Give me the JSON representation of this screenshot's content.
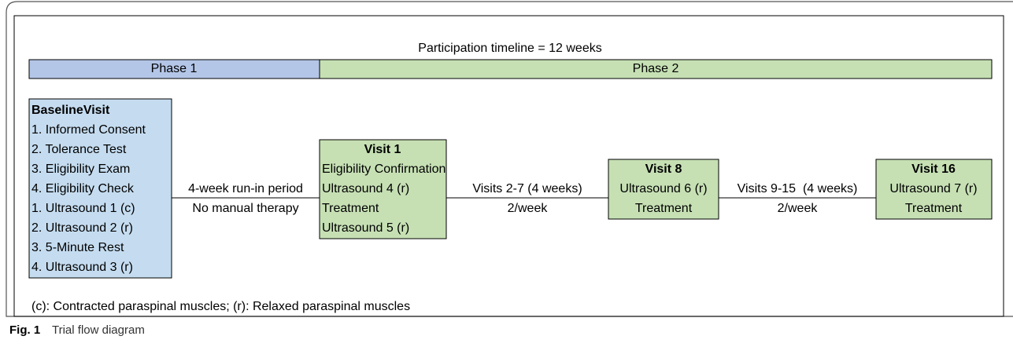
{
  "title": "Participation timeline = 12 weeks",
  "phases": [
    {
      "label": "Phase 1"
    },
    {
      "label": "Phase 2"
    }
  ],
  "nodes": [
    {
      "title": "BaselineVisit",
      "lines": [
        "1. Informed Consent",
        "2. Tolerance Test",
        "3. Eligibility Exam",
        "4. Eligibility Check",
        "1. Ultrasound 1 (c)",
        "2. Ultrasound 2 (r)",
        "3. 5-Minute Rest",
        "4. Ultrasound 3 (r)"
      ]
    },
    {
      "title": "Visit 1",
      "lines": [
        "Eligibility Confirmation",
        "Ultrasound 4 (r)",
        "Treatment",
        "Ultrasound 5 (r)"
      ]
    },
    {
      "title": "Visit 8",
      "lines": [
        "Ultrasound 6 (r)",
        "Treatment"
      ]
    },
    {
      "title": "Visit 16",
      "lines": [
        "Ultrasound 7 (r)",
        "Treatment"
      ]
    }
  ],
  "edges": [
    {
      "label": "4-week run-in period",
      "sublabel": "No manual therapy"
    },
    {
      "label": "Visits 2-7 (4 weeks)",
      "sublabel": "2/week"
    },
    {
      "label": "Visits 9-15  (4 weeks)",
      "sublabel": "2/week"
    }
  ],
  "footnote": "(c): Contracted paraspinal muscles; (r): Relaxed paraspinal muscles",
  "caption": {
    "label": "Fig. 1",
    "text": "Trial flow diagram"
  }
}
